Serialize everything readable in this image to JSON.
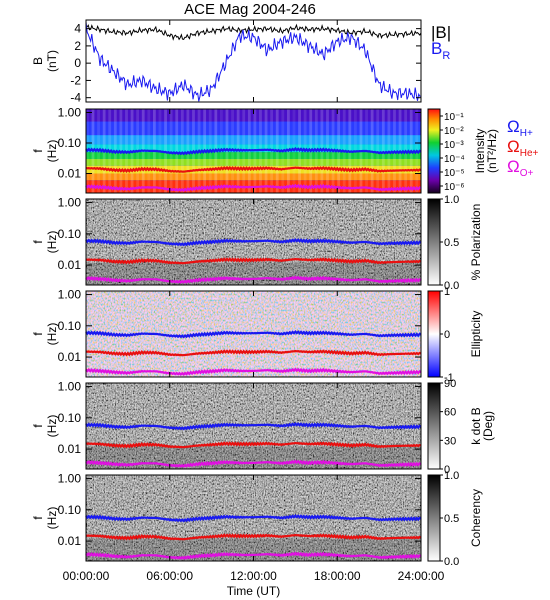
{
  "title": "ACE Mag 2004-246",
  "xaxis": {
    "ticks": [
      "00:00:00",
      "06:00:00",
      "12:00:00",
      "18:00:00",
      "24:00:00"
    ],
    "tick_hours": [
      0,
      6,
      12,
      18,
      24
    ],
    "label": "Time (UT)"
  },
  "freq_ticks": [
    "1.00",
    "0.10",
    "0.01"
  ],
  "freq_tick_values": [
    1.0,
    0.1,
    0.01
  ],
  "gyro_legend": [
    {
      "base": "Ω",
      "sub": "H+",
      "color": "#1a1af0"
    },
    {
      "base": "Ω",
      "sub": "He+",
      "color": "#e81010"
    },
    {
      "base": "Ω",
      "sub": "O+",
      "color": "#e010e0"
    }
  ],
  "chart_data": [
    {
      "type": "line",
      "panel": "magnetic-field",
      "ylabel_main": "B",
      "ylabel_unit": "(nT)",
      "ylim": [
        -4.5,
        5
      ],
      "yticks": [
        "4",
        "2",
        "0",
        "-2",
        "-4"
      ],
      "ytick_values": [
        4,
        2,
        0,
        -2,
        -4
      ],
      "x_hours": [
        0,
        1,
        2,
        3,
        4,
        5,
        6,
        7,
        8,
        9,
        10,
        11,
        12,
        13,
        14,
        15,
        16,
        17,
        18,
        19,
        20,
        21,
        22,
        23,
        24
      ],
      "series": [
        {
          "name": "|B|",
          "color": "#000000",
          "values": [
            4.2,
            3.9,
            3.6,
            3.5,
            3.8,
            3.9,
            3.2,
            2.9,
            3.5,
            3.7,
            4.0,
            3.8,
            3.9,
            4.0,
            3.7,
            4.1,
            3.9,
            4.0,
            3.8,
            3.5,
            3.7,
            3.2,
            3.3,
            3.4,
            3.5
          ]
        },
        {
          "name": "B",
          "name_sub": "R",
          "color": "#1a1af0",
          "values": [
            4.0,
            0.5,
            -1.0,
            -2.5,
            -2.0,
            -3.0,
            -3.5,
            -2.5,
            -3.8,
            -3.0,
            0.0,
            3.2,
            3.0,
            1.5,
            2.5,
            3.0,
            2.0,
            1.0,
            2.5,
            3.0,
            1.5,
            -2.5,
            -3.5,
            -3.5,
            -3.8
          ]
        }
      ]
    },
    {
      "type": "heatmap",
      "panel": "power-spectrum",
      "ylabel_main": "f",
      "ylabel_unit": "(Hz)",
      "colorbar_label": "Intensity",
      "colorbar_unit": "(nT²/Hz)",
      "colorbar_ticks": [
        "10⁻¹",
        "10⁻²",
        "10⁻³",
        "10⁻⁴",
        "10⁻⁵",
        "10⁻⁶"
      ],
      "colorbar_tick_values": [
        -1,
        -2,
        -3,
        -4,
        -5,
        -6
      ],
      "colorbar_range": [
        -6.5,
        -0.5
      ],
      "palette": "rainbow"
    },
    {
      "type": "heatmap",
      "panel": "polarization",
      "ylabel_main": "f",
      "ylabel_unit": "(Hz)",
      "colorbar_label": "% Polarization",
      "colorbar_ticks": [
        "1.0",
        "0.5",
        "0.0"
      ],
      "colorbar_tick_values": [
        1.0,
        0.5,
        0.0
      ],
      "colorbar_range": [
        0,
        1
      ],
      "palette": "gray"
    },
    {
      "type": "heatmap",
      "panel": "ellipticity",
      "ylabel_main": "f",
      "ylabel_unit": "(Hz)",
      "colorbar_label": "Ellipticity",
      "colorbar_ticks": [
        "1",
        "0",
        "-1"
      ],
      "colorbar_tick_values": [
        1,
        0,
        -1
      ],
      "colorbar_range": [
        -1,
        1
      ],
      "palette": "bwr"
    },
    {
      "type": "heatmap",
      "panel": "k-dot-b",
      "ylabel_main": "f",
      "ylabel_unit": "(Hz)",
      "colorbar_label": "k dot B",
      "colorbar_unit": "(Deg)",
      "colorbar_ticks": [
        "90",
        "60",
        "30",
        "0"
      ],
      "colorbar_tick_values": [
        90,
        60,
        30,
        0
      ],
      "colorbar_range": [
        0,
        90
      ],
      "palette": "gray"
    },
    {
      "type": "heatmap",
      "panel": "coherency",
      "ylabel_main": "f",
      "ylabel_unit": "(Hz)",
      "colorbar_label": "Coherency",
      "colorbar_ticks": [
        "1.0",
        "0.5",
        "0.0"
      ],
      "colorbar_tick_values": [
        1.0,
        0.5,
        0.0
      ],
      "colorbar_range": [
        0,
        1
      ],
      "palette": "gray"
    }
  ],
  "gyrofrequency_hz": {
    "H+": [
      0.06,
      0.058,
      0.052,
      0.05,
      0.056,
      0.055,
      0.048,
      0.046,
      0.052,
      0.055,
      0.06,
      0.058,
      0.058,
      0.06,
      0.055,
      0.062,
      0.058,
      0.06,
      0.056,
      0.052,
      0.055,
      0.048,
      0.05,
      0.051,
      0.052
    ],
    "He+": [
      0.015,
      0.0145,
      0.013,
      0.0125,
      0.014,
      0.0138,
      0.012,
      0.0115,
      0.013,
      0.0138,
      0.015,
      0.0145,
      0.0145,
      0.015,
      0.0138,
      0.0155,
      0.0145,
      0.015,
      0.014,
      0.013,
      0.0138,
      0.012,
      0.0125,
      0.0128,
      0.013
    ],
    "O+": [
      0.0038,
      0.0036,
      0.0033,
      0.0031,
      0.0035,
      0.0035,
      0.003,
      0.0029,
      0.0033,
      0.0035,
      0.0038,
      0.0036,
      0.0036,
      0.0038,
      0.0035,
      0.0039,
      0.0036,
      0.0038,
      0.0035,
      0.0033,
      0.0035,
      0.003,
      0.0031,
      0.0032,
      0.0033
    ]
  }
}
